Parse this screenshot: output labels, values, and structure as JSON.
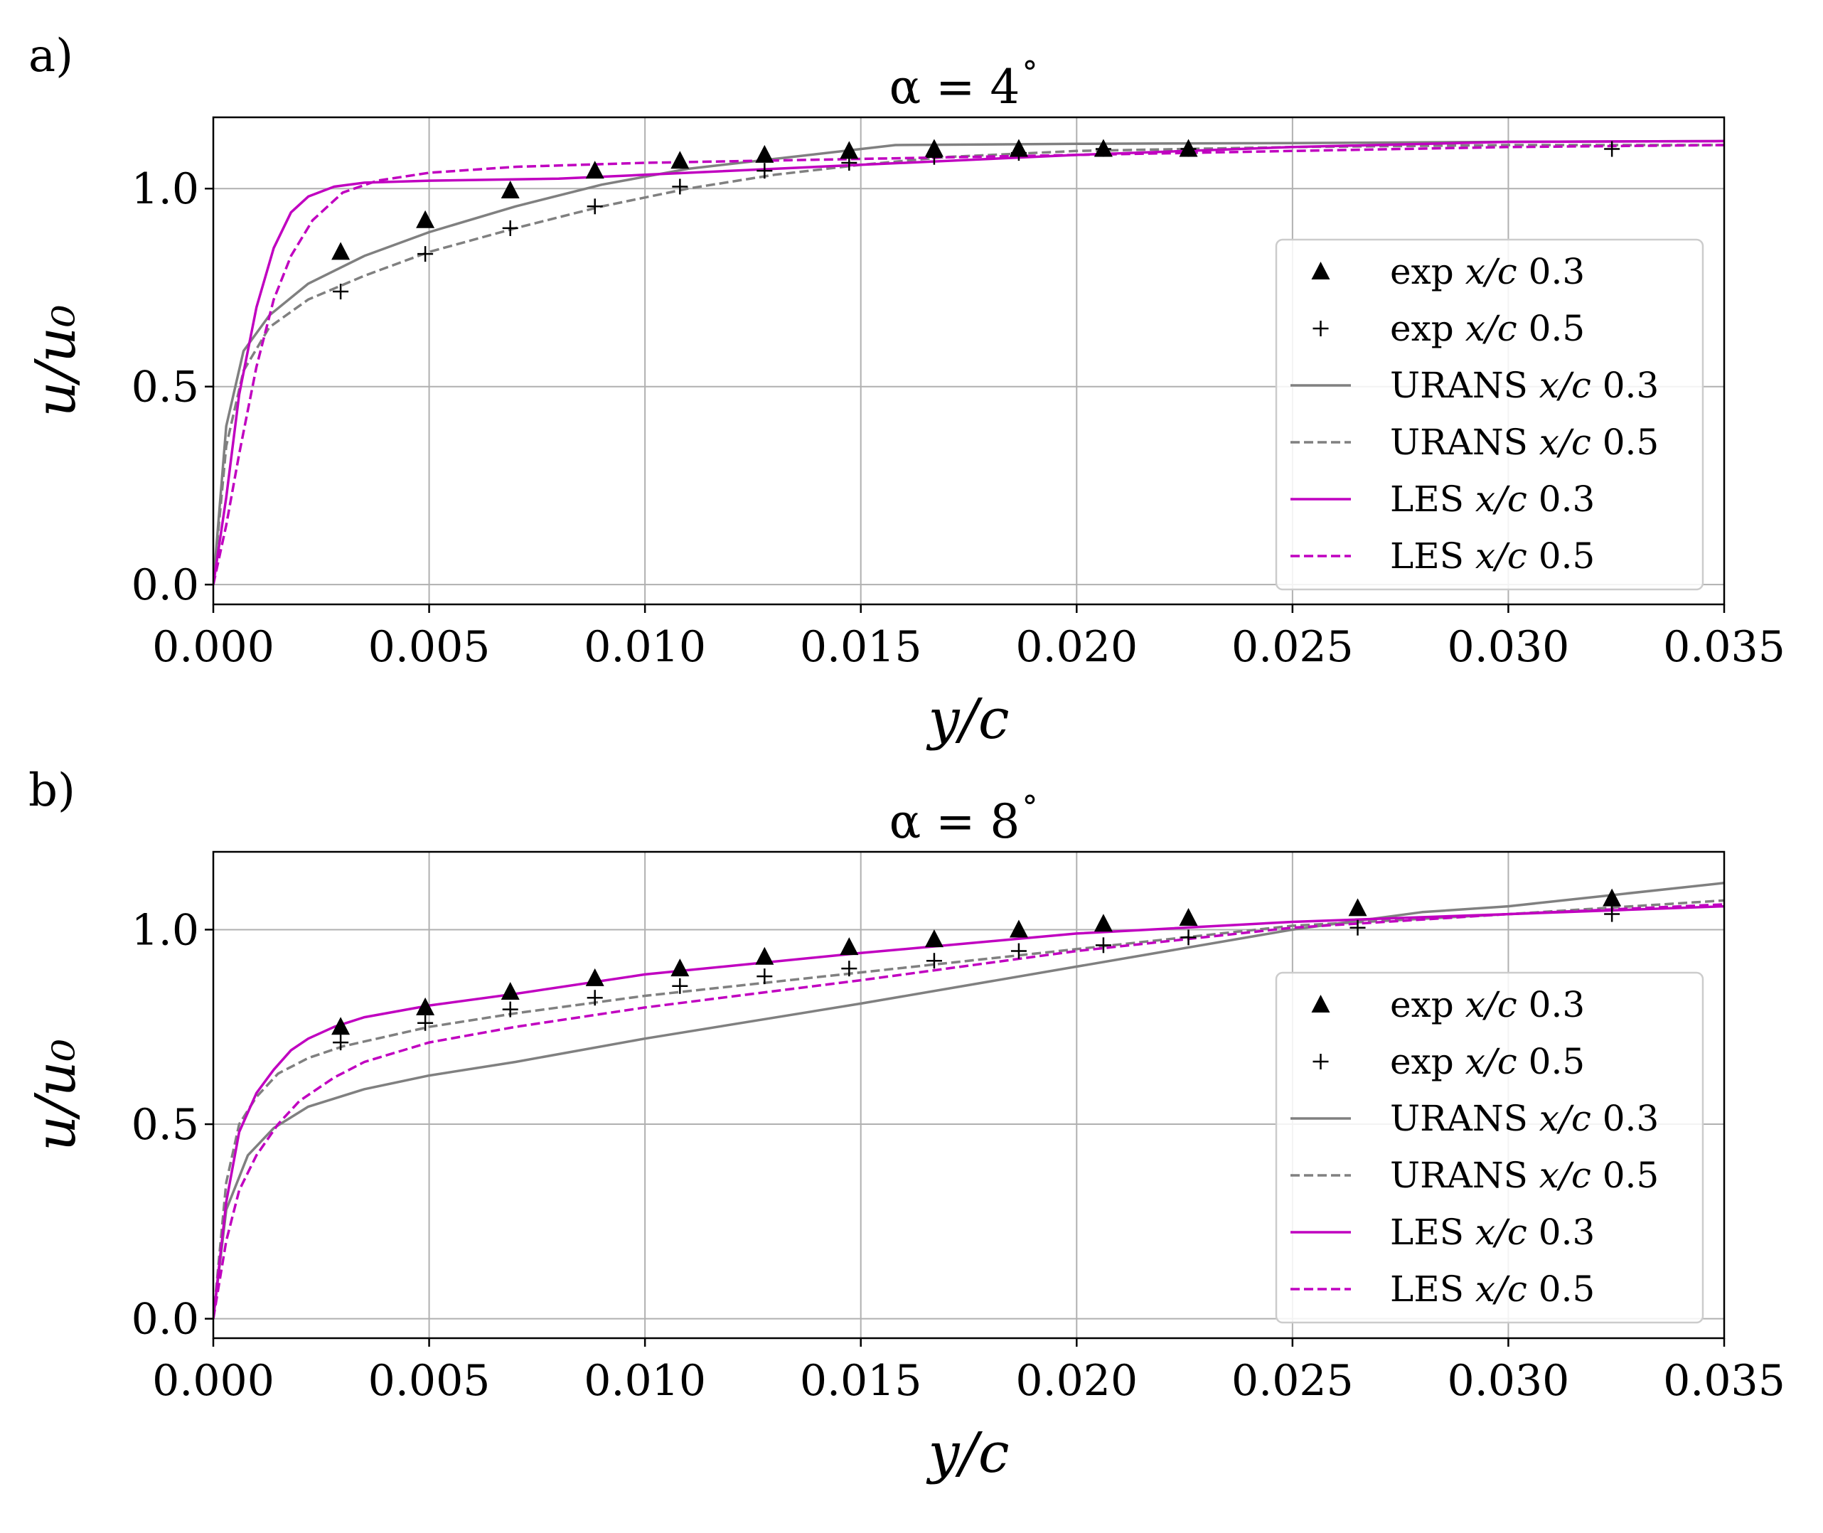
{
  "chart_data": [
    {
      "type": "line",
      "panel_label": "a)",
      "title_prefix": "α = 4",
      "title_suffix": "°",
      "xlabel": "y/c",
      "ylabel": "u/u₀",
      "xlim": [
        0,
        0.035
      ],
      "ylim": [
        -0.05,
        1.18
      ],
      "xticks": [
        0,
        0.005,
        0.01,
        0.015,
        0.02,
        0.025,
        0.03,
        0.035
      ],
      "xtick_labels": [
        "0.000",
        "0.005",
        "0.010",
        "0.015",
        "0.020",
        "0.025",
        "0.030",
        "0.035"
      ],
      "yticks": [
        0,
        0.5,
        1.0
      ],
      "ytick_labels": [
        "0.0",
        "0.5",
        "1.0"
      ],
      "grid": true,
      "legend_position": "center-right",
      "series": [
        {
          "name": "exp x/c 0.3",
          "label_prefix": "exp",
          "label_italic": "x/c",
          "label_suffix": "0.3",
          "kind": "triangle",
          "color": "#000000",
          "x": [
            0.00295,
            0.00491,
            0.00688,
            0.00884,
            0.01081,
            0.01277,
            0.01473,
            0.0167,
            0.01866,
            0.02062,
            0.02259
          ],
          "y": [
            0.84,
            0.92,
            0.995,
            1.045,
            1.07,
            1.085,
            1.095,
            1.1,
            1.1,
            1.1,
            1.1
          ]
        },
        {
          "name": "exp x/c 0.5",
          "label_prefix": "exp",
          "label_italic": "x/c",
          "label_suffix": "0.5",
          "kind": "plus",
          "color": "#000000",
          "x": [
            0.00295,
            0.00491,
            0.00688,
            0.00884,
            0.01081,
            0.01277,
            0.01473,
            0.0167,
            0.01866,
            0.02062,
            0.02259,
            0.0324
          ],
          "y": [
            0.74,
            0.835,
            0.9,
            0.955,
            1.005,
            1.045,
            1.065,
            1.08,
            1.09,
            1.1,
            1.1,
            1.1
          ]
        },
        {
          "name": "URANS x/c 0.3",
          "label_prefix": "URANS",
          "label_italic": "x/c",
          "label_suffix": "0.3",
          "kind": "solid",
          "color": "#808080",
          "x": [
            0,
            0.0003,
            0.0007,
            0.0013,
            0.0022,
            0.0035,
            0.005,
            0.007,
            0.009,
            0.011,
            0.013,
            0.0158,
            0.02,
            0.025,
            0.03,
            0.035
          ],
          "y": [
            0,
            0.4,
            0.59,
            0.68,
            0.76,
            0.83,
            0.89,
            0.955,
            1.01,
            1.05,
            1.075,
            1.11,
            1.113,
            1.115,
            1.118,
            1.12
          ]
        },
        {
          "name": "URANS x/c 0.5",
          "label_prefix": "URANS",
          "label_italic": "x/c",
          "label_suffix": "0.5",
          "kind": "dashed",
          "color": "#808080",
          "x": [
            0,
            0.0003,
            0.0007,
            0.0013,
            0.0022,
            0.0035,
            0.005,
            0.007,
            0.009,
            0.011,
            0.013,
            0.015,
            0.017,
            0.02,
            0.025,
            0.03,
            0.035
          ],
          "y": [
            0,
            0.35,
            0.54,
            0.65,
            0.72,
            0.78,
            0.84,
            0.9,
            0.955,
            1.0,
            1.035,
            1.06,
            1.08,
            1.095,
            1.105,
            1.11,
            1.11
          ]
        },
        {
          "name": "LES x/c 0.3",
          "label_prefix": "LES",
          "label_italic": "x/c",
          "label_suffix": "0.3",
          "kind": "solid",
          "color": "#c000c0",
          "x": [
            0,
            0.0003,
            0.0006,
            0.001,
            0.0014,
            0.0018,
            0.0022,
            0.0028,
            0.0035,
            0.005,
            0.008,
            0.01,
            0.015,
            0.02,
            0.025,
            0.03,
            0.035
          ],
          "y": [
            0,
            0.22,
            0.48,
            0.7,
            0.85,
            0.94,
            0.98,
            1.005,
            1.015,
            1.02,
            1.025,
            1.035,
            1.06,
            1.085,
            1.105,
            1.118,
            1.12
          ]
        },
        {
          "name": "LES x/c 0.5",
          "label_prefix": "LES",
          "label_italic": "x/c",
          "label_suffix": "0.5",
          "kind": "dashed",
          "color": "#c000c0",
          "x": [
            0,
            0.0003,
            0.0006,
            0.001,
            0.0014,
            0.0018,
            0.0023,
            0.003,
            0.0038,
            0.005,
            0.007,
            0.01,
            0.015,
            0.02,
            0.025,
            0.03,
            0.035
          ],
          "y": [
            0,
            0.15,
            0.33,
            0.55,
            0.72,
            0.83,
            0.92,
            0.99,
            1.02,
            1.04,
            1.055,
            1.065,
            1.075,
            1.085,
            1.095,
            1.105,
            1.11
          ]
        }
      ]
    },
    {
      "type": "line",
      "panel_label": "b)",
      "title_prefix": "α = 8",
      "title_suffix": "°",
      "xlabel": "y/c",
      "ylabel": "u/u₀",
      "xlim": [
        0,
        0.035
      ],
      "ylim": [
        -0.05,
        1.2
      ],
      "xticks": [
        0,
        0.005,
        0.01,
        0.015,
        0.02,
        0.025,
        0.03,
        0.035
      ],
      "xtick_labels": [
        "0.000",
        "0.005",
        "0.010",
        "0.015",
        "0.020",
        "0.025",
        "0.030",
        "0.035"
      ],
      "yticks": [
        0,
        0.5,
        1.0
      ],
      "ytick_labels": [
        "0.0",
        "0.5",
        "1.0"
      ],
      "grid": true,
      "legend_position": "lower-right",
      "series": [
        {
          "name": "exp x/c 0.3",
          "label_prefix": "exp",
          "label_italic": "x/c",
          "label_suffix": "0.3",
          "kind": "triangle",
          "color": "#000000",
          "x": [
            0.00295,
            0.00491,
            0.00688,
            0.00884,
            0.01081,
            0.01277,
            0.01473,
            0.0167,
            0.01866,
            0.02062,
            0.02259,
            0.02651,
            0.0324
          ],
          "y": [
            0.75,
            0.8,
            0.84,
            0.875,
            0.9,
            0.93,
            0.955,
            0.975,
            1.0,
            1.015,
            1.03,
            1.055,
            1.08
          ]
        },
        {
          "name": "exp x/c 0.5",
          "label_prefix": "exp",
          "label_italic": "x/c",
          "label_suffix": "0.5",
          "kind": "plus",
          "color": "#000000",
          "x": [
            0.00295,
            0.00491,
            0.00688,
            0.00884,
            0.01081,
            0.01277,
            0.01473,
            0.0167,
            0.01866,
            0.02062,
            0.02259,
            0.02651,
            0.0324
          ],
          "y": [
            0.71,
            0.76,
            0.795,
            0.825,
            0.855,
            0.88,
            0.9,
            0.92,
            0.945,
            0.96,
            0.98,
            1.005,
            1.04
          ]
        },
        {
          "name": "URANS x/c 0.3",
          "label_prefix": "URANS",
          "label_italic": "x/c",
          "label_suffix": "0.3",
          "kind": "solid",
          "color": "#808080",
          "x": [
            0,
            0.0003,
            0.0008,
            0.0014,
            0.0022,
            0.0035,
            0.005,
            0.007,
            0.01,
            0.015,
            0.02,
            0.025,
            0.028,
            0.03,
            0.035
          ],
          "y": [
            0,
            0.28,
            0.42,
            0.49,
            0.545,
            0.59,
            0.625,
            0.66,
            0.72,
            0.81,
            0.905,
            1.0,
            1.045,
            1.06,
            1.12
          ]
        },
        {
          "name": "URANS x/c 0.5",
          "label_prefix": "URANS",
          "label_italic": "x/c",
          "label_suffix": "0.5",
          "kind": "dashed",
          "color": "#808080",
          "x": [
            0,
            0.0003,
            0.0006,
            0.001,
            0.0015,
            0.0022,
            0.003,
            0.005,
            0.007,
            0.01,
            0.015,
            0.02,
            0.025,
            0.03,
            0.035
          ],
          "y": [
            0,
            0.35,
            0.5,
            0.57,
            0.63,
            0.67,
            0.7,
            0.75,
            0.785,
            0.83,
            0.89,
            0.95,
            1.01,
            1.04,
            1.075
          ]
        },
        {
          "name": "LES x/c 0.3",
          "label_prefix": "LES",
          "label_italic": "x/c",
          "label_suffix": "0.3",
          "kind": "solid",
          "color": "#c000c0",
          "x": [
            0,
            0.0003,
            0.0006,
            0.001,
            0.0014,
            0.0018,
            0.0022,
            0.0028,
            0.0035,
            0.005,
            0.007,
            0.01,
            0.015,
            0.02,
            0.025,
            0.03,
            0.035
          ],
          "y": [
            0,
            0.3,
            0.48,
            0.58,
            0.64,
            0.69,
            0.72,
            0.75,
            0.775,
            0.805,
            0.835,
            0.885,
            0.94,
            0.99,
            1.02,
            1.04,
            1.06
          ]
        },
        {
          "name": "LES x/c 0.5",
          "label_prefix": "LES",
          "label_italic": "x/c",
          "label_suffix": "0.5",
          "kind": "dashed",
          "color": "#c000c0",
          "x": [
            0,
            0.0003,
            0.0006,
            0.001,
            0.0015,
            0.002,
            0.0028,
            0.0035,
            0.005,
            0.007,
            0.01,
            0.015,
            0.02,
            0.025,
            0.03,
            0.035
          ],
          "y": [
            0,
            0.2,
            0.33,
            0.42,
            0.5,
            0.56,
            0.62,
            0.66,
            0.71,
            0.75,
            0.8,
            0.87,
            0.945,
            1.005,
            1.04,
            1.065
          ]
        }
      ]
    }
  ]
}
